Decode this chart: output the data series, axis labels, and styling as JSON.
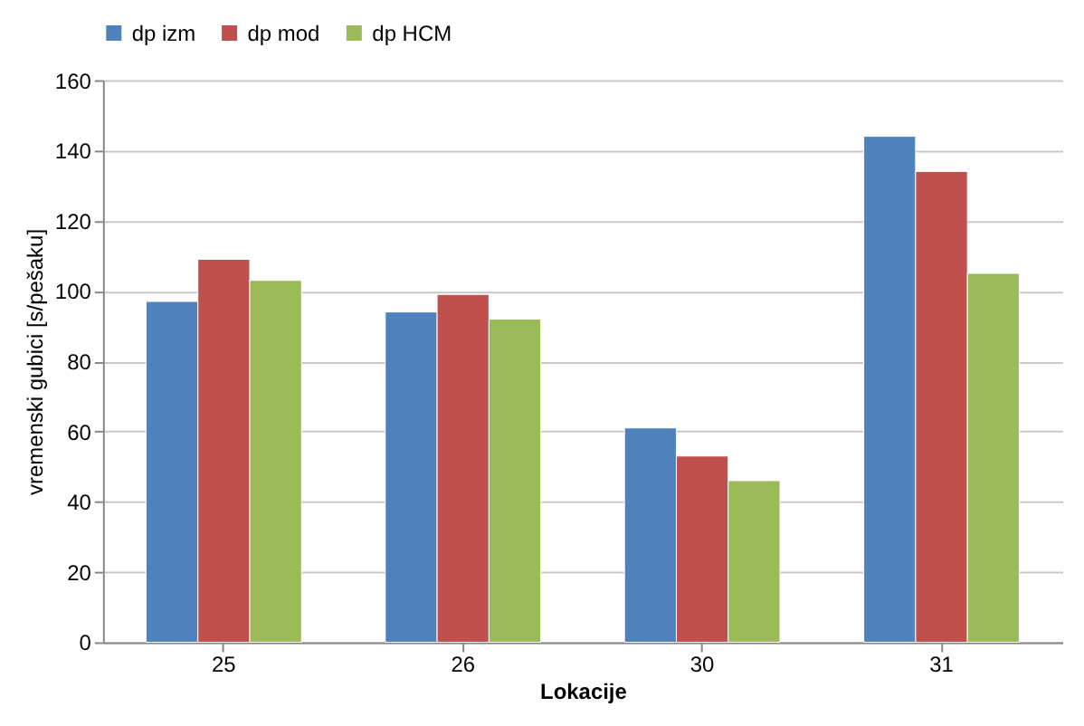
{
  "chart_data": {
    "type": "bar",
    "xlabel": "Lokacije",
    "ylabel": "vremenski gubici [s/pešaku]",
    "categories": [
      "25",
      "26",
      "30",
      "31"
    ],
    "series": [
      {
        "name": "dp izm",
        "color": "#4f81bd",
        "values": [
          97,
          94,
          61,
          144
        ]
      },
      {
        "name": "dp mod",
        "color": "#c0504d",
        "values": [
          109,
          99,
          53,
          134
        ]
      },
      {
        "name": "dp HCM",
        "color": "#9bbb59",
        "values": [
          103,
          92,
          46,
          105
        ]
      }
    ],
    "ylim": [
      0,
      160
    ],
    "yticks": [
      0,
      20,
      40,
      60,
      80,
      100,
      120,
      140,
      160
    ],
    "grid": "y",
    "legend": "top"
  }
}
